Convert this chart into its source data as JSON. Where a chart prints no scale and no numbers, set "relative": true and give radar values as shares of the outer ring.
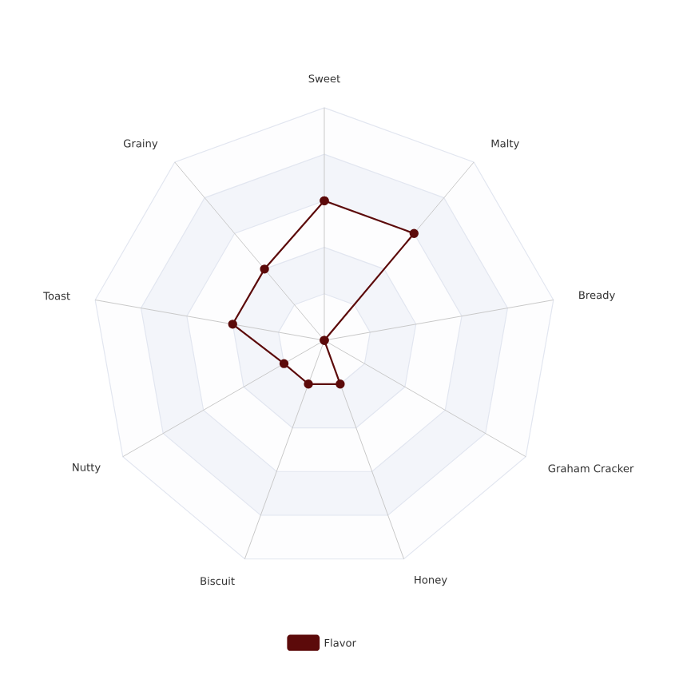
{
  "chart_data": {
    "type": "radar",
    "relative": true,
    "categories": [
      "Sweet",
      "Malty",
      "Bready",
      "Graham Cracker",
      "Honey",
      "Biscuit",
      "Nutty",
      "Toast",
      "Grainy"
    ],
    "series": [
      {
        "name": "Flavor",
        "color": "#5c0a0a",
        "values": [
          0.6,
          0.6,
          0,
          0,
          0.2,
          0.2,
          0.2,
          0.4,
          0.4
        ]
      }
    ],
    "legend": "bottom",
    "marker": "circle",
    "line_style": "solid"
  }
}
